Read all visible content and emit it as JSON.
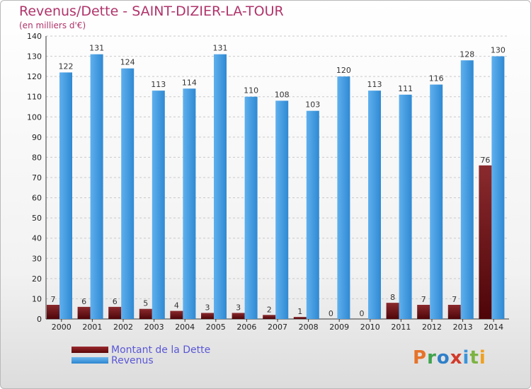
{
  "chart_data": {
    "type": "bar",
    "title": "Revenus/Dette - SAINT-DIZIER-LA-TOUR",
    "subtitle": "(en milliers d'€)",
    "categories": [
      "2000",
      "2001",
      "2002",
      "2003",
      "2004",
      "2005",
      "2006",
      "2007",
      "2008",
      "2009",
      "2010",
      "2011",
      "2012",
      "2013",
      "2014"
    ],
    "series": [
      {
        "name": "Montant de la Dette",
        "color": "#6b0a0e",
        "values": [
          7,
          6,
          6,
          5,
          4,
          3,
          3,
          2,
          1,
          0,
          0,
          8,
          7,
          7,
          76
        ]
      },
      {
        "name": "Revenus",
        "color": "#3a95db",
        "values": [
          122,
          131,
          124,
          113,
          114,
          131,
          110,
          108,
          103,
          120,
          113,
          111,
          116,
          128,
          130
        ]
      }
    ],
    "ylim": [
      0,
      140
    ],
    "yticks": [
      0,
      10,
      20,
      30,
      40,
      50,
      60,
      70,
      80,
      90,
      100,
      110,
      120,
      130,
      140
    ],
    "grid": true,
    "legend_position": "bottom-left"
  },
  "logo": {
    "text": "Proxiti"
  }
}
